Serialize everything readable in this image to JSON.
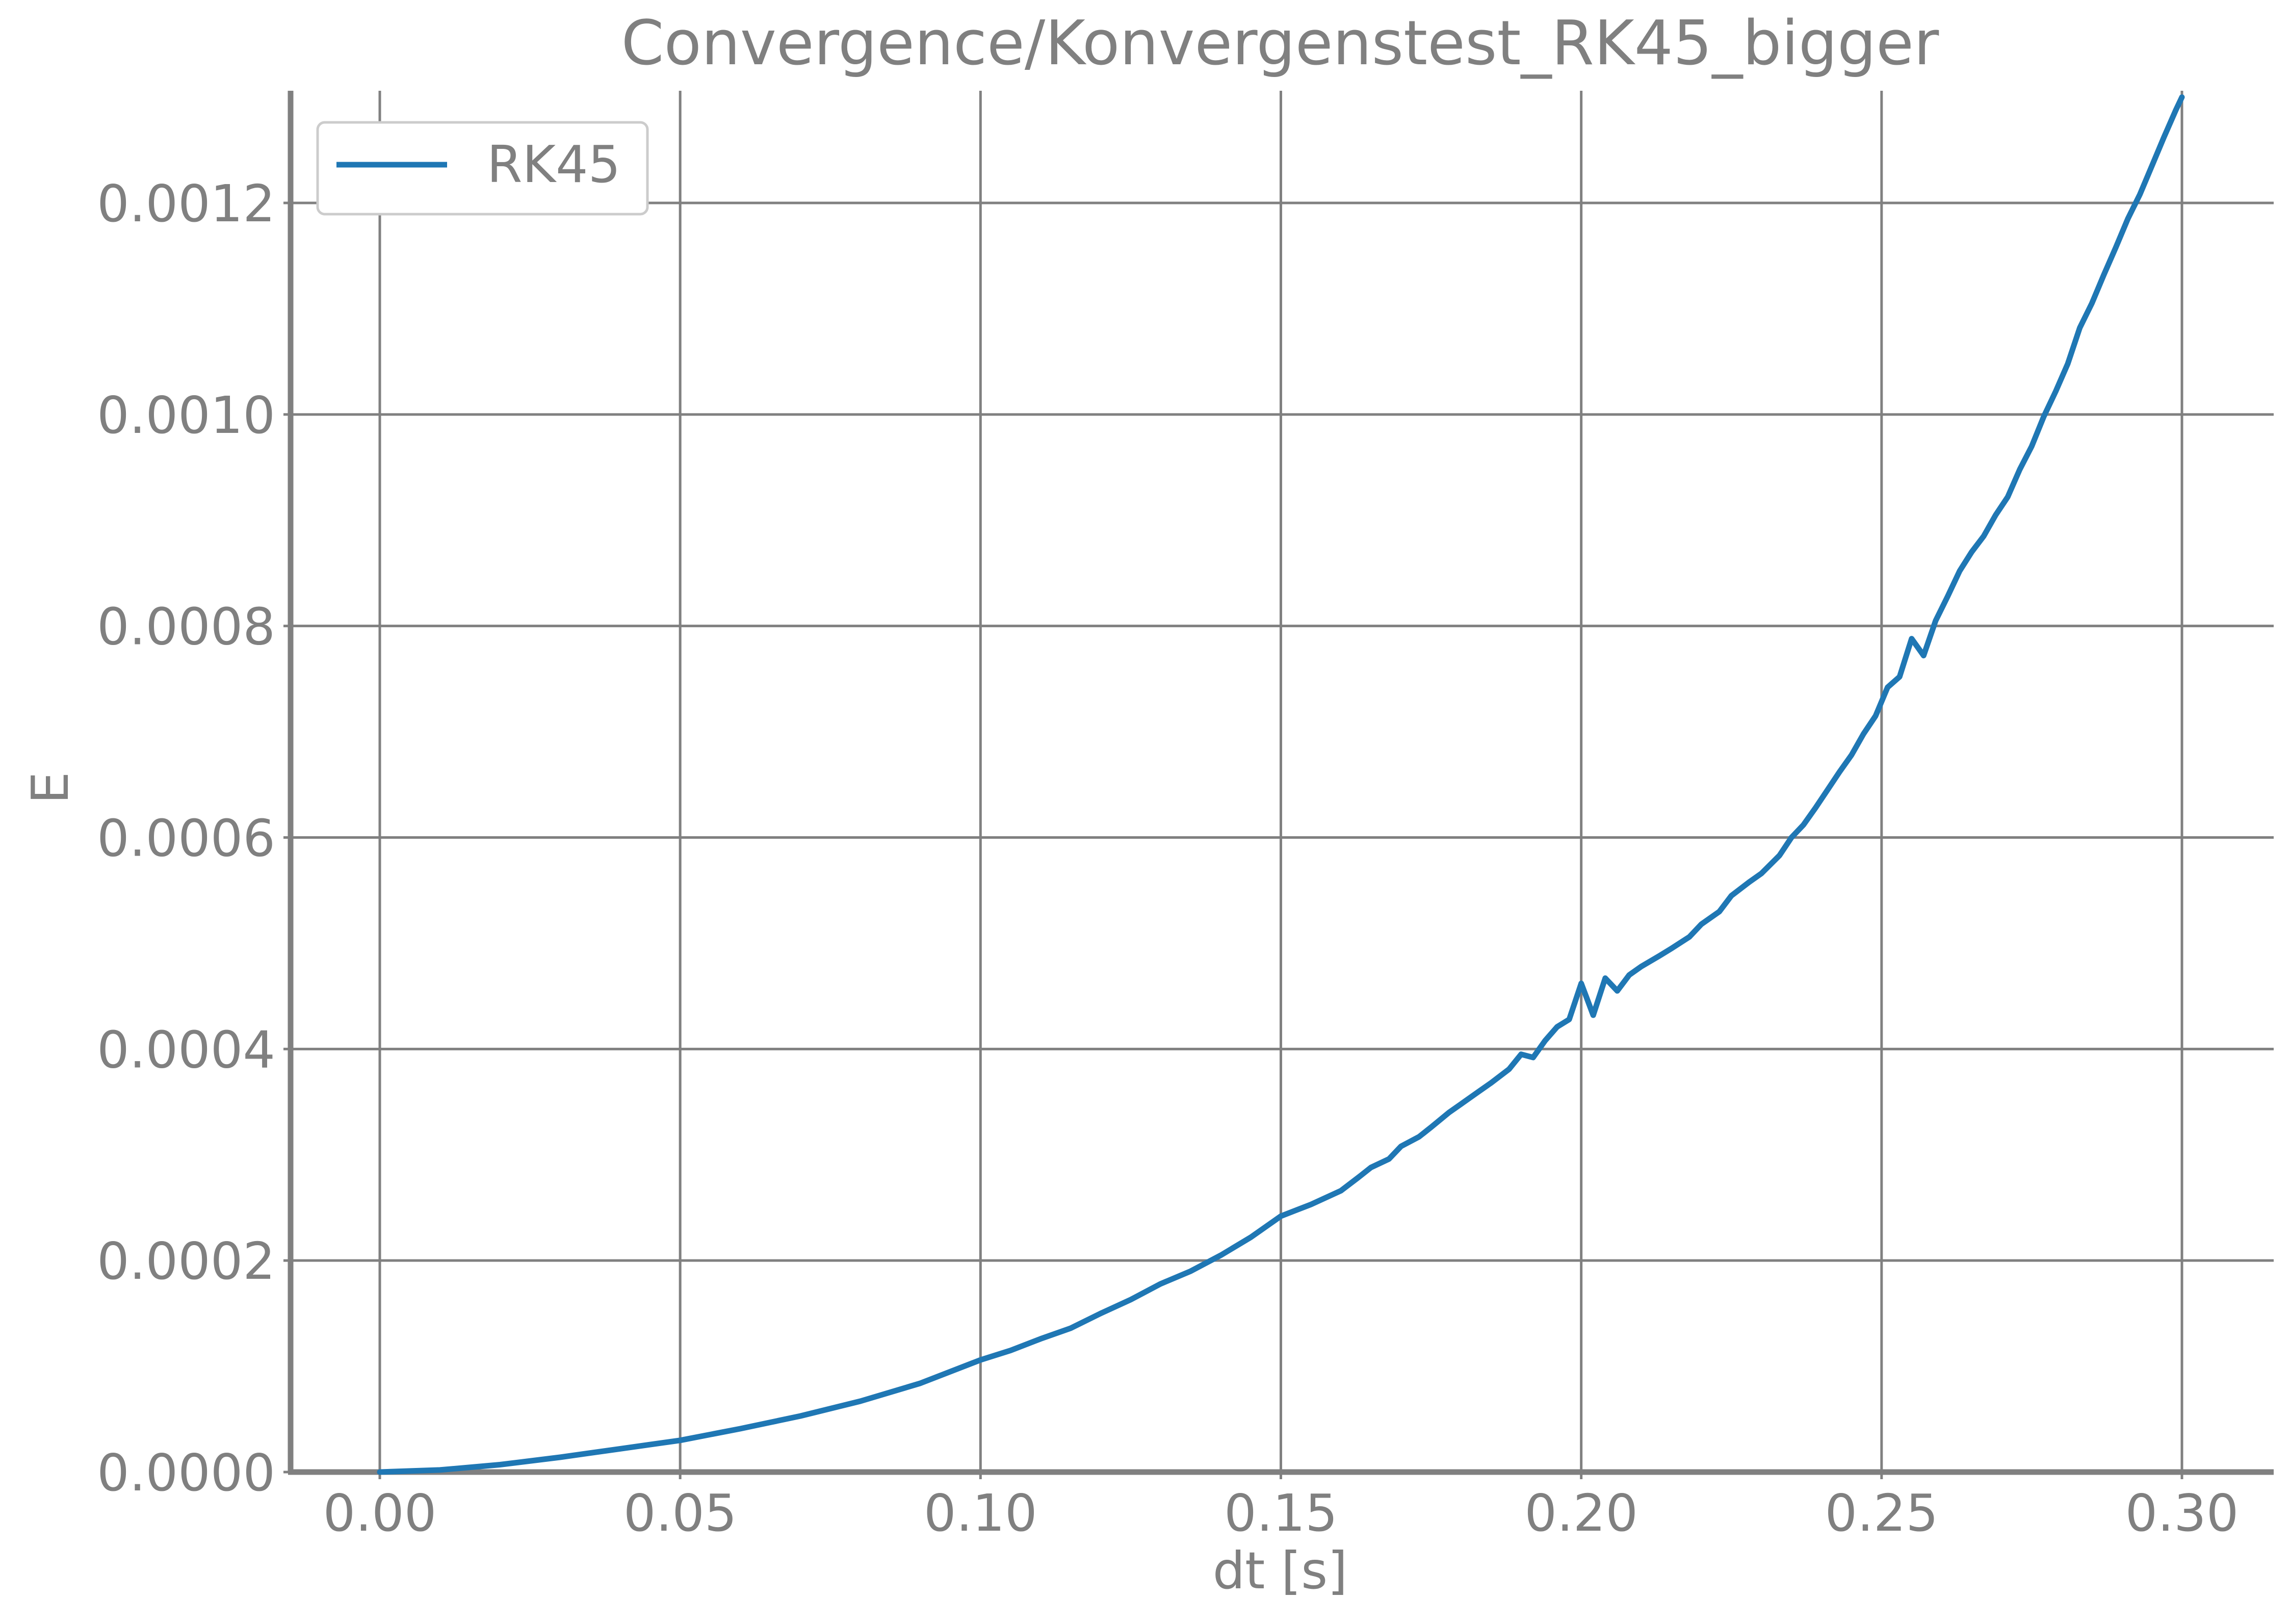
{
  "chart_data": {
    "type": "line",
    "title": "Convergence/Konvergenstest_RK45_bigger",
    "xlabel": "dt [s]",
    "ylabel": "E",
    "xlim": [
      -0.015,
      0.315
    ],
    "ylim": [
      0,
      0.0013
    ],
    "xticks": [
      "0.00",
      "0.05",
      "0.10",
      "0.15",
      "0.20",
      "0.25",
      "0.30"
    ],
    "yticks": [
      "0.0000",
      "0.0002",
      "0.0004",
      "0.0006",
      "0.0008",
      "0.0010",
      "0.0012"
    ],
    "grid": true,
    "legend_position": "top-left",
    "series": [
      {
        "name": "RK45",
        "color": "#1f77b4",
        "x": [
          0.0,
          0.01,
          0.02,
          0.03,
          0.04,
          0.05,
          0.06,
          0.07,
          0.08,
          0.09,
          0.1,
          0.105,
          0.11,
          0.115,
          0.12,
          0.125,
          0.13,
          0.135,
          0.14,
          0.145,
          0.15,
          0.155,
          0.16,
          0.163,
          0.165,
          0.168,
          0.17,
          0.173,
          0.175,
          0.178,
          0.18,
          0.183,
          0.185,
          0.188,
          0.19,
          0.192,
          0.194,
          0.196,
          0.198,
          0.2,
          0.202,
          0.204,
          0.206,
          0.208,
          0.21,
          0.213,
          0.215,
          0.218,
          0.22,
          0.223,
          0.225,
          0.228,
          0.23,
          0.233,
          0.235,
          0.237,
          0.239,
          0.241,
          0.243,
          0.245,
          0.247,
          0.249,
          0.251,
          0.253,
          0.255,
          0.257,
          0.259,
          0.261,
          0.263,
          0.265,
          0.267,
          0.269,
          0.271,
          0.273,
          0.275,
          0.277,
          0.279,
          0.281,
          0.283,
          0.285,
          0.287,
          0.289,
          0.291,
          0.293,
          0.295,
          0.297,
          0.299,
          0.3
        ],
        "values": [
          0.0,
          2e-06,
          7e-06,
          1.4e-05,
          2.2e-05,
          3e-05,
          4.1e-05,
          5.3e-05,
          6.7e-05,
          8.4e-05,
          0.000106,
          0.000115,
          0.000126,
          0.000136,
          0.00015,
          0.000163,
          0.000178,
          0.00019,
          0.000205,
          0.000222,
          0.000242,
          0.000253,
          0.000266,
          0.000279,
          0.000288,
          0.000296,
          0.000308,
          0.000317,
          0.000326,
          0.00034,
          0.000348,
          0.00036,
          0.000368,
          0.000381,
          0.000395,
          0.000392,
          0.000408,
          0.000421,
          0.000428,
          0.000462,
          0.000432,
          0.000467,
          0.000455,
          0.00047,
          0.000478,
          0.000488,
          0.000495,
          0.000506,
          0.000518,
          0.00053,
          0.000545,
          0.000558,
          0.000566,
          0.000583,
          0.0006,
          0.000612,
          0.000628,
          0.000645,
          0.000662,
          0.000678,
          0.000698,
          0.000715,
          0.000742,
          0.000752,
          0.000788,
          0.000772,
          0.000805,
          0.000828,
          0.000852,
          0.00087,
          0.000885,
          0.000905,
          0.000922,
          0.000948,
          0.00097,
          0.000998,
          0.001022,
          0.001048,
          0.001082,
          0.001105,
          0.001132,
          0.001158,
          0.001185,
          0.001208,
          0.001235,
          0.001262,
          0.001288,
          0.0013
        ]
      }
    ]
  }
}
